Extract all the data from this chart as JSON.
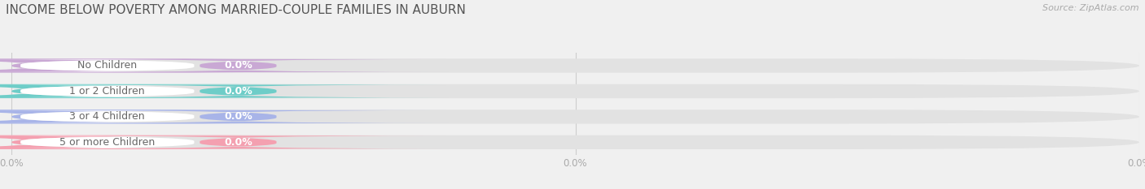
{
  "title": "INCOME BELOW POVERTY AMONG MARRIED-COUPLE FAMILIES IN AUBURN",
  "source": "Source: ZipAtlas.com",
  "categories": [
    "No Children",
    "1 or 2 Children",
    "3 or 4 Children",
    "5 or more Children"
  ],
  "values": [
    0.0,
    0.0,
    0.0,
    0.0
  ],
  "bar_colors": [
    "#c9a8d4",
    "#6ecdc8",
    "#a8b4e8",
    "#f4a0b0"
  ],
  "background_color": "#f0f0f0",
  "title_color": "#555555",
  "label_text_color": "#888888",
  "value_text_color": "#ffffff",
  "source_color": "#aaaaaa",
  "title_fontsize": 11,
  "bar_fontsize": 9,
  "source_fontsize": 8,
  "xtick_positions": [
    0.0,
    0.5,
    1.0
  ],
  "xtick_labels": [
    "0.0%",
    "0.0%",
    "0.0%"
  ]
}
